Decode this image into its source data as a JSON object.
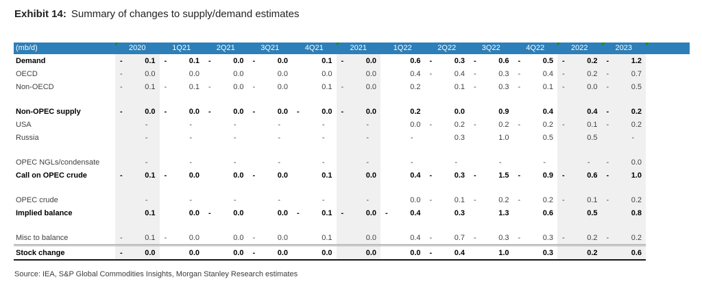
{
  "title": {
    "exhibit_label": "Exhibit 14:",
    "title_text": "Summary of changes to supply/demand estimates"
  },
  "source_line": "Source: IEA, S&P Global Commodities Insights, Morgan Stanley Research estimates",
  "colors": {
    "header_bg": "#2C7FB8",
    "header_text": "#FFFFFF",
    "shaded_column_bg": "#F0F0F0",
    "comment_marker_green": "#1E8A1A",
    "bottom_border": "#141414",
    "separator_line": "#9A9A9A",
    "body_text": "#3F3F3F",
    "bold_text": "#000000"
  },
  "chart_data": {
    "type": "table",
    "unit_label": "(mb/d)",
    "columns": [
      {
        "label": "2020",
        "shaded": true,
        "marker": true
      },
      {
        "label": "1Q21",
        "shaded": false,
        "marker": false
      },
      {
        "label": "2Q21",
        "shaded": false,
        "marker": false
      },
      {
        "label": "3Q21",
        "shaded": false,
        "marker": false
      },
      {
        "label": "4Q21",
        "shaded": false,
        "marker": false
      },
      {
        "label": "2021",
        "shaded": true,
        "marker": true
      },
      {
        "label": "1Q22",
        "shaded": false,
        "marker": false
      },
      {
        "label": "2Q22",
        "shaded": false,
        "marker": false
      },
      {
        "label": "3Q22",
        "shaded": false,
        "marker": false
      },
      {
        "label": "4Q22",
        "shaded": false,
        "marker": false
      },
      {
        "label": "2022",
        "shaded": true,
        "marker": true
      },
      {
        "label": "2023",
        "shaded": true,
        "marker": true
      }
    ],
    "trailing_header_cell": {
      "label": "",
      "marker": true
    },
    "rows": [
      {
        "label": "Demand",
        "bold": true,
        "cells": [
          "-0.1",
          "-0.1",
          "-0.0",
          "-0.0",
          "0.1",
          "-0.0",
          "0.6",
          "-0.3",
          "-0.6",
          "-0.5",
          "-0.2",
          "-1.2"
        ]
      },
      {
        "label": "OECD",
        "bold": false,
        "cells": [
          "-0.0",
          "0.0",
          "0.0",
          "0.0",
          "0.0",
          "0.0",
          "0.4",
          "-0.4",
          "-0.3",
          "-0.4",
          "-0.2",
          "-0.7"
        ]
      },
      {
        "label": "Non-OECD",
        "bold": false,
        "cells": [
          "-0.1",
          "-0.1",
          "-0.0",
          "-0.0",
          "0.1",
          "-0.0",
          "0.2",
          "0.1",
          "-0.3",
          "-0.1",
          "-0.0",
          "-0.5"
        ]
      },
      {
        "blank": true
      },
      {
        "label": "Non-OPEC supply",
        "bold": true,
        "cells": [
          "-0.0",
          "-0.0",
          "-0.0",
          "-0.0",
          "-0.0",
          "-0.0",
          "0.2",
          "0.0",
          "0.9",
          "0.4",
          "0.4",
          "-0.2"
        ]
      },
      {
        "label": "USA",
        "bold": false,
        "cells": [
          "-",
          "-",
          "-",
          "-",
          "-",
          "-",
          "0.0",
          "-0.2",
          "-0.2",
          "-0.2",
          "-0.1",
          "-0.2"
        ]
      },
      {
        "label": "Russia",
        "bold": false,
        "cells": [
          "-",
          "-",
          "-",
          "-",
          "-",
          "-",
          "-",
          "0.3",
          "1.0",
          "0.5",
          "0.5",
          "-"
        ]
      },
      {
        "blank": true
      },
      {
        "label": "OPEC NGLs/condensate",
        "bold": false,
        "cells": [
          "-",
          "-",
          "-",
          "-",
          "-",
          "-",
          "-",
          "-",
          "-",
          "-",
          "-",
          "-0.0"
        ]
      },
      {
        "label": "Call on OPEC crude",
        "bold": true,
        "cells": [
          "-0.1",
          "-0.0",
          "0.0",
          "-0.0",
          "0.1",
          "0.0",
          "0.4",
          "-0.3",
          "-1.5",
          "-0.9",
          "-0.6",
          "-1.0"
        ]
      },
      {
        "blank": true
      },
      {
        "label": "OPEC crude",
        "bold": false,
        "cells": [
          "-",
          "-",
          "-",
          "-",
          "-",
          "-",
          "0.0",
          "-0.1",
          "-0.2",
          "-0.2",
          "-0.1",
          "-0.2"
        ]
      },
      {
        "label": "Implied balance",
        "bold": true,
        "cells": [
          "0.1",
          "0.0",
          "-0.0",
          "0.0",
          "-0.1",
          "-0.0",
          "-0.4",
          "0.3",
          "1.3",
          "0.6",
          "0.5",
          "0.8"
        ]
      },
      {
        "blank": true
      },
      {
        "label": "Misc to balance",
        "bold": false,
        "cells": [
          "-0.1",
          "-0.0",
          "0.0",
          "-0.0",
          "0.1",
          "0.0",
          "0.4",
          "-0.7",
          "-0.3",
          "-0.3",
          "-0.2",
          "-0.2"
        ]
      },
      {
        "label": "Stock change",
        "bold": true,
        "separator_top": true,
        "cells": [
          "-0.0",
          "0.0",
          "0.0",
          "-0.0",
          "0.0",
          "0.0",
          "0.0",
          "-0.4",
          "1.0",
          "0.3",
          "0.2",
          "0.6"
        ]
      }
    ]
  }
}
